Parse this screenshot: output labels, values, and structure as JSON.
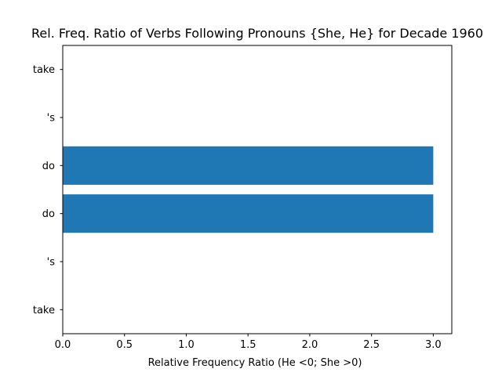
{
  "chart_data": {
    "type": "bar",
    "orientation": "horizontal",
    "title": "Rel. Freq. Ratio of Verbs Following Pronouns {She, He} for Decade 1960",
    "xlabel": "Relative Frequency Ratio (He <0; She >0)",
    "ylabel": "",
    "categories": [
      "take",
      "'s",
      "do",
      "do",
      "'s",
      "take"
    ],
    "values": [
      0,
      0,
      3.0,
      3.0,
      0,
      0
    ],
    "xlim": [
      0,
      3.15
    ],
    "xticks": [
      0.0,
      0.5,
      1.0,
      1.5,
      2.0,
      2.5,
      3.0
    ],
    "xtick_labels": [
      "0.0",
      "0.5",
      "1.0",
      "1.5",
      "2.0",
      "2.5",
      "3.0"
    ],
    "bar_color": "#1f77b4",
    "grid": false,
    "legend": "none"
  }
}
